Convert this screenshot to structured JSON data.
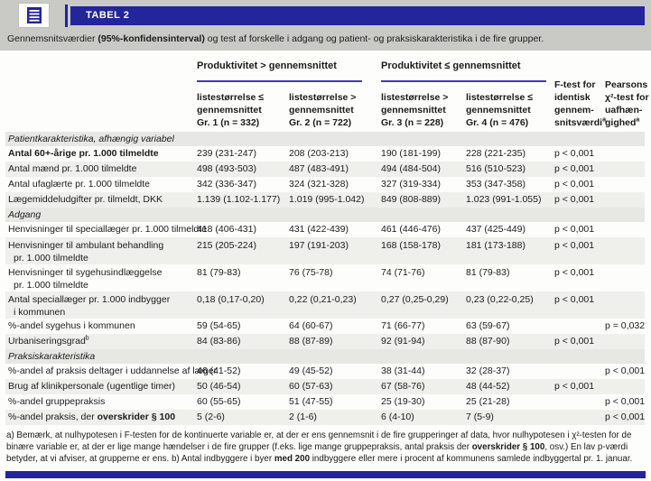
{
  "colors": {
    "accent_blue": "#24249b",
    "rule_blue": "#3d3daf",
    "band_gray": "#c9c9c5",
    "row_stripe": "#efefec",
    "section_bg": "#e7e7e3"
  },
  "header": {
    "title": "TABEL 2",
    "icon": "table-icon"
  },
  "caption": {
    "part1": "Gennemsnitsværdier ",
    "bold": "(95%-konfidensinterval)",
    "part2": " og test af forskelle i adgang og patient- og praksiskarakteristika i de fire grupper."
  },
  "table": {
    "group_headers": [
      {
        "label": "Produktivitet > gennemsnittet"
      },
      {
        "label": "Produktivitet ≤ gennemsnittet"
      }
    ],
    "sub_headers": [
      {
        "l1": "listestørrelse ≤",
        "l2": "gennemsnittet",
        "l3": "Gr. 1 (n = 332)"
      },
      {
        "l1": "listestørrelse >",
        "l2": "gennemsnittet",
        "l3": "Gr. 2 (n = 722)"
      },
      {
        "l1": "listestørrelse >",
        "l2": "gennemsnittet",
        "l3": "Gr. 3 (n = 228)"
      },
      {
        "l1": "listestørrelse ≤",
        "l2": "gennemsnittet",
        "l3": "Gr. 4 (n = 476)"
      }
    ],
    "ftest_header": {
      "l1": "F-test for",
      "l2": "identisk",
      "l3": "gennem-",
      "l4": "snitsværdi",
      "sup": "a"
    },
    "pearsons_header": {
      "l1": "Pearsons",
      "l2": "χ²-test for",
      "l3": "uafhæn-",
      "l4": "gighed",
      "sup": "a"
    },
    "rows": [
      {
        "type": "section",
        "label": "Patientkarakteristika, afhængig variabel"
      },
      {
        "type": "data",
        "shade": "w",
        "bold": true,
        "label": "Antal 60+-årige pr. 1.000 tilmeldte",
        "values": [
          "239 (231-247)",
          "208 (203-213)",
          "190 (181-199)",
          "228 (221-235)"
        ],
        "ftest": "p < 0,001",
        "chi2": ""
      },
      {
        "type": "data",
        "shade": "g",
        "label": "Antal mænd pr. 1.000 tilmeldte",
        "values": [
          "498 (493-503)",
          "487 (483-491)",
          "494 (484-504)",
          "516 (510-523)"
        ],
        "ftest": "p < 0,001",
        "chi2": ""
      },
      {
        "type": "data",
        "shade": "w",
        "label": "Antal ufaglærte pr. 1.000 tilmeldte",
        "values": [
          "342 (336-347)",
          "324 (321-328)",
          "327 (319-334)",
          "353 (347-358)"
        ],
        "ftest": "p < 0,001",
        "chi2": ""
      },
      {
        "type": "data",
        "shade": "g",
        "label": "Lægemiddeludgifter pr. tilmeldt, DKK",
        "values": [
          "1.139 (1.102-1.177)",
          "1.019 (995-1.042)",
          "849 (808-889)",
          "1.023 (991-1.055)"
        ],
        "ftest": "p < 0,001",
        "chi2": ""
      },
      {
        "type": "section",
        "label": "Adgang"
      },
      {
        "type": "data",
        "shade": "w",
        "label": "Henvisninger til speciallæger pr. 1.000 tilmeldte",
        "values": [
          "418 (406-431)",
          "431 (422-439)",
          "461 (446-476)",
          "437 (425-449)"
        ],
        "ftest": "p < 0,001",
        "chi2": ""
      },
      {
        "type": "data",
        "shade": "g",
        "label": "Henvisninger til ambulant behandling",
        "label2": "pr. 1.000 tilmeldte",
        "values": [
          "215 (205-224)",
          "197 (191-203)",
          "168 (158-178)",
          "181 (173-188)"
        ],
        "ftest": "p < 0,001",
        "chi2": ""
      },
      {
        "type": "data",
        "shade": "w",
        "label": "Henvisninger til sygehusindlæggelse",
        "label2": "pr. 1.000 tilmeldte",
        "values": [
          "81 (79-83)",
          "76 (75-78)",
          "74 (71-76)",
          "81 (79-83)"
        ],
        "ftest": "p < 0,001",
        "chi2": ""
      },
      {
        "type": "data",
        "shade": "g",
        "label": "Antal speciallæger pr. 1.000 indbygger",
        "label2": "i kommunen",
        "values": [
          "0,18 (0,17-0,20)",
          "0,22 (0,21-0,23)",
          "0,27 (0,25-0,29)",
          "0,23 (0,22-0,25)"
        ],
        "ftest": "p < 0,001",
        "chi2": ""
      },
      {
        "type": "data",
        "shade": "w",
        "label": "%-andel sygehus i kommunen",
        "values": [
          "59 (54-65)",
          "64 (60-67)",
          "71 (66-77)",
          "63 (59-67)"
        ],
        "ftest": "",
        "chi2": "p = 0,032"
      },
      {
        "type": "data",
        "shade": "g",
        "label": "Urbaniseringsgrad",
        "sup": "b",
        "values": [
          "84 (83-86)",
          "88 (87-89)",
          "92 (91-94)",
          "88 (87-90)"
        ],
        "ftest": "p < 0,001",
        "chi2": ""
      },
      {
        "type": "section",
        "label": "Praksiskarakteristika"
      },
      {
        "type": "data",
        "shade": "w",
        "label": "%-andel af praksis deltager i uddannelse af læger",
        "values": [
          "46 (41-52)",
          "49 (45-52)",
          "38 (31-44)",
          "32 (28-37)"
        ],
        "ftest": "",
        "chi2": "p < 0,001"
      },
      {
        "type": "data",
        "shade": "g",
        "label": "Brug af klinikpersonale (ugentlige timer)",
        "values": [
          "50 (46-54)",
          "60 (57-63)",
          "67 (58-76)",
          "48 (44-52)"
        ],
        "ftest": "p < 0,001",
        "chi2": ""
      },
      {
        "type": "data",
        "shade": "w",
        "label": "%-andel gruppepraksis",
        "values": [
          "60 (55-65)",
          "51 (47-55)",
          "25 (19-30)",
          "25 (21-28)"
        ],
        "ftest": "",
        "chi2": "p < 0,001"
      },
      {
        "type": "data",
        "shade": "g",
        "label_pre": "%-andel praksis, der ",
        "label_bold": "overskrider § 100",
        "values": [
          "5 (2-6)",
          "2 (1-6)",
          "6 (4-10)",
          "7 (5-9)"
        ],
        "ftest": "",
        "chi2": "p < 0,001"
      }
    ]
  },
  "footnote": {
    "part1": "a) Bemærk, at nulhypotesen i F-testen for de kontinuerte variable er, at der er ens gennemsnit i de fire grupperinger af data, hvor nulhypotesen i χ²-testen for de binære variable er, at der er lige mange hændelser i de fire grupper (f.eks. lige mange gruppepraksis, antal praksis der ",
    "bold1": "overskrider § 100",
    "part2": ", osv.) En lav p-værdi betyder, at vi afviser, at grupperne er ens.  b) Antal indbyggere i byer ",
    "bold2": "med 200",
    "part3": " indbyggere eller mere i procent af kommunens samlede indbyggertal pr. 1. januar."
  }
}
